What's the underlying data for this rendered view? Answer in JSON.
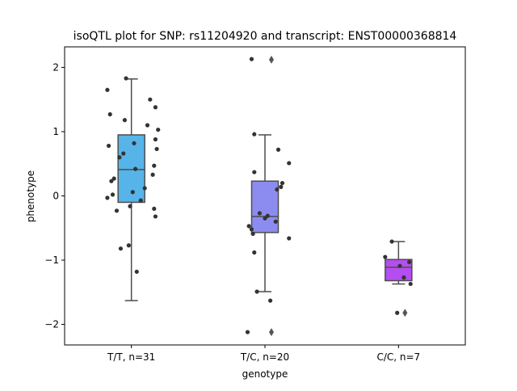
{
  "chart_data": {
    "type": "box",
    "title": "isoQTL plot for SNP: rs11204920 and transcript: ENST00000368814",
    "xlabel": "genotype",
    "ylabel": "phenotype",
    "ylim": [
      -2.32,
      2.32
    ],
    "yticks": [
      -2,
      -1,
      0,
      1,
      2
    ],
    "ytick_labels": [
      "−2",
      "−1",
      "0",
      "1",
      "2"
    ],
    "grid": false,
    "categories": [
      "T/T, n=31",
      "T/C, n=20",
      "C/C, n=7"
    ],
    "colors": [
      "#56b4e9",
      "#8c8cf0",
      "#b44ef0"
    ],
    "boxes": [
      {
        "q1": -0.1,
        "median": 0.41,
        "q3": 0.95,
        "whisker_low": -1.63,
        "whisker_high": 1.82,
        "outliers": []
      },
      {
        "q1": -0.57,
        "median": -0.32,
        "q3": 0.23,
        "whisker_low": -1.49,
        "whisker_high": 0.95,
        "outliers": [
          2.12,
          -2.12
        ]
      },
      {
        "q1": -1.32,
        "median": -1.11,
        "q3": -0.99,
        "whisker_low": -1.37,
        "whisker_high": -0.71,
        "outliers": [
          -1.82
        ]
      }
    ],
    "points": [
      [
        [
          -0.04,
          1.83
        ],
        [
          -0.18,
          1.65
        ],
        [
          0.14,
          1.5
        ],
        [
          0.18,
          1.38
        ],
        [
          -0.16,
          1.27
        ],
        [
          -0.05,
          1.18
        ],
        [
          0.12,
          1.1
        ],
        [
          0.2,
          1.03
        ],
        [
          0.18,
          0.88
        ],
        [
          0.02,
          0.82
        ],
        [
          -0.17,
          0.78
        ],
        [
          0.19,
          0.73
        ],
        [
          -0.06,
          0.66
        ],
        [
          -0.09,
          0.6
        ],
        [
          0.17,
          0.47
        ],
        [
          0.03,
          0.42
        ],
        [
          0.16,
          0.33
        ],
        [
          -0.13,
          0.27
        ],
        [
          -0.15,
          0.23
        ],
        [
          0.1,
          0.12
        ],
        [
          0.01,
          0.06
        ],
        [
          -0.14,
          0.02
        ],
        [
          -0.18,
          -0.03
        ],
        [
          0.07,
          -0.07
        ],
        [
          -0.01,
          -0.16
        ],
        [
          0.17,
          -0.2
        ],
        [
          -0.11,
          -0.23
        ],
        [
          0.18,
          -0.32
        ],
        [
          -0.02,
          -0.77
        ],
        [
          -0.08,
          -0.82
        ],
        [
          0.04,
          -1.18
        ]
      ],
      [
        [
          -0.1,
          2.13
        ],
        [
          -0.08,
          0.96
        ],
        [
          0.1,
          0.72
        ],
        [
          0.18,
          0.51
        ],
        [
          -0.08,
          0.37
        ],
        [
          0.13,
          0.2
        ],
        [
          0.12,
          0.14
        ],
        [
          0.09,
          0.1
        ],
        [
          -0.04,
          -0.27
        ],
        [
          0.02,
          -0.31
        ],
        [
          0.0,
          -0.35
        ],
        [
          0.08,
          -0.4
        ],
        [
          -0.12,
          -0.47
        ],
        [
          -0.1,
          -0.52
        ],
        [
          -0.09,
          -0.59
        ],
        [
          0.18,
          -0.66
        ],
        [
          -0.08,
          -0.88
        ],
        [
          -0.06,
          -1.49
        ],
        [
          0.04,
          -1.63
        ],
        [
          -0.13,
          -2.12
        ]
      ],
      [
        [
          -0.05,
          -0.71
        ],
        [
          -0.1,
          -0.95
        ],
        [
          0.08,
          -1.03
        ],
        [
          0.01,
          -1.09
        ],
        [
          0.04,
          -1.27
        ],
        [
          0.09,
          -1.37
        ],
        [
          -0.01,
          -1.82
        ]
      ]
    ]
  }
}
